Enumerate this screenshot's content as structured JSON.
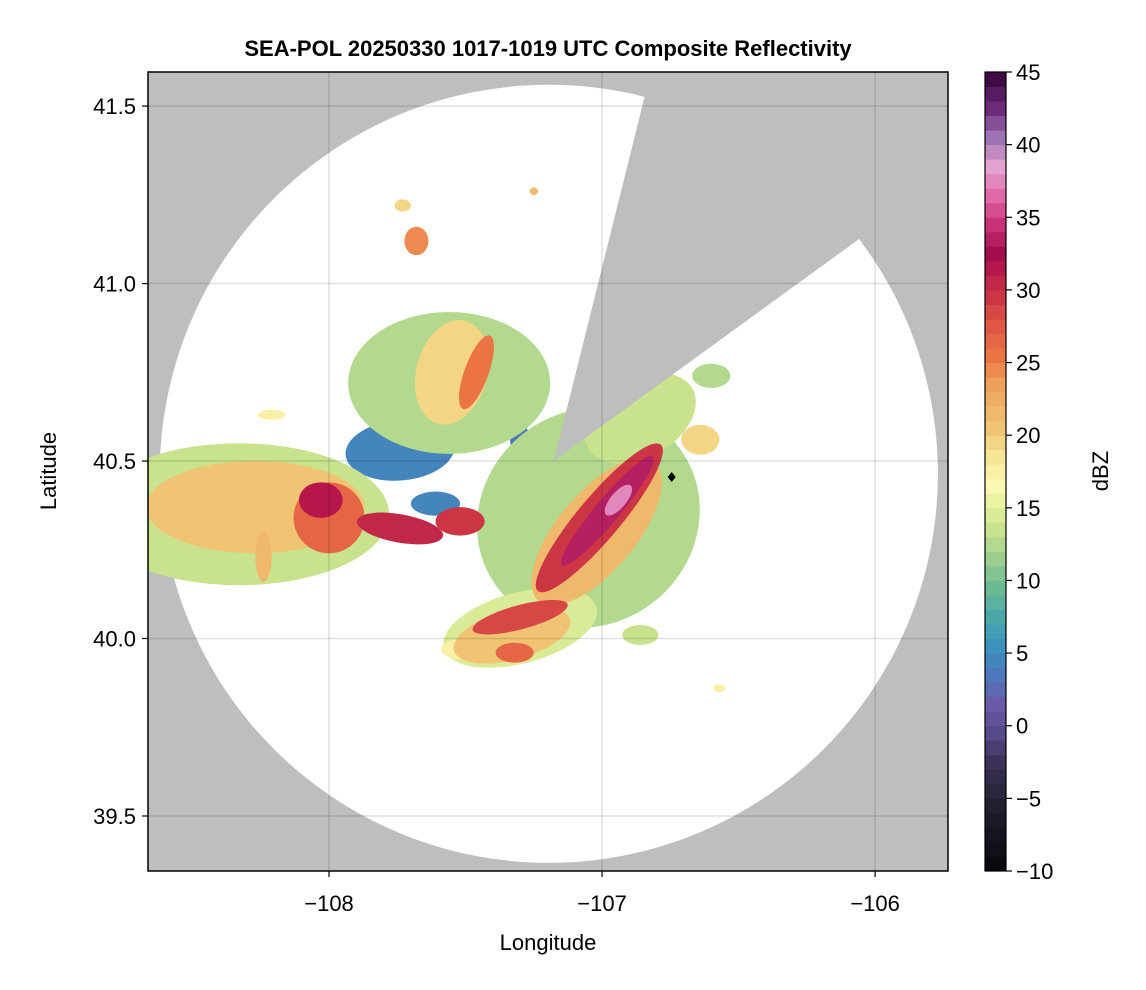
{
  "chart_data": {
    "type": "heatmap",
    "title": "SEA-POL 20250330 1017-1019 UTC Composite Reflectivity",
    "xlabel": "Longitude",
    "ylabel": "Latitude",
    "xlim": [
      -108.663,
      -105.733
    ],
    "ylim": [
      39.345,
      41.596
    ],
    "xticks": [
      -108,
      -107,
      -106
    ],
    "xtick_labels": [
      "−108",
      "−107",
      "−106"
    ],
    "yticks": [
      39.5,
      40.0,
      40.5,
      41.0,
      41.5
    ],
    "ytick_labels": [
      "39.5",
      "40.0",
      "40.5",
      "41.0",
      "41.5"
    ],
    "grid": true,
    "background_color": "#bebebe",
    "radar": {
      "center_lon": -107.195,
      "center_lat": 40.464,
      "range_lon_deg": 1.425,
      "range_lat_deg": 1.096,
      "blocked_sector_azimuth_deg": [
        14,
        54
      ]
    },
    "marker": {
      "lon": -106.745,
      "lat": 40.455,
      "shape": "diamond",
      "color": "#000000"
    },
    "colorbar": {
      "label": "dBZ",
      "range": [
        -10,
        45
      ],
      "step": 1,
      "ticks": [
        -10,
        -5,
        0,
        5,
        10,
        15,
        20,
        25,
        30,
        35,
        40,
        45
      ],
      "tick_labels": [
        "−10",
        "−5",
        "0",
        "5",
        "10",
        "15",
        "20",
        "25",
        "30",
        "35",
        "40",
        "45"
      ],
      "color_stops": [
        [
          -10,
          "#050308"
        ],
        [
          -5,
          "#22202e"
        ],
        [
          -2,
          "#3c3158"
        ],
        [
          0,
          "#574a8a"
        ],
        [
          2,
          "#6a5aa8"
        ],
        [
          4,
          "#4d78bd"
        ],
        [
          6,
          "#3b92bd"
        ],
        [
          8,
          "#4ba8a8"
        ],
        [
          10,
          "#6abb94"
        ],
        [
          12,
          "#9ccf8e"
        ],
        [
          14,
          "#c8e28e"
        ],
        [
          16,
          "#eaf3a0"
        ],
        [
          17,
          "#fbf8b3"
        ],
        [
          19,
          "#f6e596"
        ],
        [
          21,
          "#f1c474"
        ],
        [
          24,
          "#eea05a"
        ],
        [
          26,
          "#ea7444"
        ],
        [
          28,
          "#e05845"
        ],
        [
          30,
          "#cc3644"
        ],
        [
          32,
          "#b5174a"
        ],
        [
          33,
          "#a00e4c"
        ],
        [
          35,
          "#c93278"
        ],
        [
          37,
          "#e06aa8"
        ],
        [
          39,
          "#e3a3d0"
        ],
        [
          41,
          "#9e73b4"
        ],
        [
          43,
          "#6d2b7a"
        ],
        [
          45,
          "#3f0a45"
        ]
      ]
    },
    "echo_cells": [
      {
        "lon": -108.33,
        "lat": 40.35,
        "rlon": 0.55,
        "rlat": 0.2,
        "angle": 0,
        "dbz": 14
      },
      {
        "lon": -107.56,
        "lat": 40.72,
        "rlon": 0.37,
        "rlat": 0.2,
        "angle": 0,
        "dbz": 13
      },
      {
        "lon": -107.05,
        "lat": 40.34,
        "rlon": 0.42,
        "rlat": 0.3,
        "angle": -40,
        "dbz": 13
      },
      {
        "lon": -107.3,
        "lat": 40.03,
        "rlon": 0.29,
        "rlat": 0.1,
        "angle": -15,
        "dbz": 15
      },
      {
        "lon": -106.86,
        "lat": 40.62,
        "rlon": 0.22,
        "rlat": 0.11,
        "angle": -30,
        "dbz": 14
      },
      {
        "lon": -108.27,
        "lat": 40.37,
        "rlon": 0.4,
        "rlat": 0.13,
        "angle": 0,
        "dbz": 21
      },
      {
        "lon": -107.55,
        "lat": 40.75,
        "rlon": 0.13,
        "rlat": 0.15,
        "angle": 15,
        "dbz": 20
      },
      {
        "lon": -107.02,
        "lat": 40.3,
        "rlon": 0.33,
        "rlat": 0.11,
        "angle": -50,
        "dbz": 22
      },
      {
        "lon": -107.33,
        "lat": 40.01,
        "rlon": 0.22,
        "rlat": 0.07,
        "angle": -15,
        "dbz": 21
      },
      {
        "lon": -107.74,
        "lat": 40.53,
        "rlon": 0.2,
        "rlat": 0.085,
        "angle": -5,
        "dbz": 5
      },
      {
        "lon": -107.61,
        "lat": 40.38,
        "rlon": 0.09,
        "rlat": 0.034,
        "angle": 0,
        "dbz": 5
      },
      {
        "lon": -107.24,
        "lat": 40.27,
        "rlon": 0.044,
        "rlat": 0.07,
        "angle": 20,
        "dbz": 5
      },
      {
        "lon": -108.0,
        "lat": 40.34,
        "rlon": 0.13,
        "rlat": 0.1,
        "angle": 0,
        "dbz": 27
      },
      {
        "lon": -108.03,
        "lat": 40.39,
        "rlon": 0.08,
        "rlat": 0.05,
        "angle": 0,
        "dbz": 32
      },
      {
        "lon": -107.74,
        "lat": 40.31,
        "rlon": 0.16,
        "rlat": 0.04,
        "angle": 10,
        "dbz": 31
      },
      {
        "lon": -107.52,
        "lat": 40.33,
        "rlon": 0.09,
        "rlat": 0.04,
        "angle": 0,
        "dbz": 30
      },
      {
        "lon": -107.46,
        "lat": 40.75,
        "rlon": 0.044,
        "rlat": 0.11,
        "angle": 20,
        "dbz": 26
      },
      {
        "lon": -107.01,
        "lat": 40.34,
        "rlon": 0.35,
        "rlat": 0.06,
        "angle": -50,
        "dbz": 30
      },
      {
        "lon": -106.98,
        "lat": 40.36,
        "rlon": 0.26,
        "rlat": 0.034,
        "angle": -50,
        "dbz": 34
      },
      {
        "lon": -106.94,
        "lat": 40.39,
        "rlon": 0.07,
        "rlat": 0.022,
        "angle": -50,
        "dbz": 38
      },
      {
        "lon": -107.3,
        "lat": 40.06,
        "rlon": 0.18,
        "rlat": 0.034,
        "angle": -15,
        "dbz": 29
      },
      {
        "lon": -107.32,
        "lat": 39.96,
        "rlon": 0.07,
        "rlat": 0.028,
        "angle": 0,
        "dbz": 27
      },
      {
        "lon": -107.19,
        "lat": 40.55,
        "rlon": 0.044,
        "rlat": 0.022,
        "angle": 0,
        "dbz": -1
      },
      {
        "lon": -107.17,
        "lat": 40.34,
        "rlon": 0.03,
        "rlat": 0.04,
        "angle": 20,
        "dbz": -1
      },
      {
        "lon": -107.35,
        "lat": 40.38,
        "rlon": 0.07,
        "rlat": 0.028,
        "angle": 0,
        "dbz": 2
      },
      {
        "lon": -107.3,
        "lat": 40.56,
        "rlon": 0.037,
        "rlat": 0.042,
        "angle": 0,
        "dbz": 4
      },
      {
        "lon": -107.68,
        "lat": 41.12,
        "rlon": 0.044,
        "rlat": 0.04,
        "angle": 0,
        "dbz": 25
      },
      {
        "lon": -107.73,
        "lat": 41.22,
        "rlon": 0.03,
        "rlat": 0.017,
        "angle": 0,
        "dbz": 20
      },
      {
        "lon": -108.21,
        "lat": 40.63,
        "rlon": 0.05,
        "rlat": 0.014,
        "angle": 0,
        "dbz": 18
      },
      {
        "lon": -108.24,
        "lat": 40.23,
        "rlon": 0.03,
        "rlat": 0.07,
        "angle": 0,
        "dbz": 22
      },
      {
        "lon": -106.6,
        "lat": 40.74,
        "rlon": 0.07,
        "rlat": 0.034,
        "angle": 0,
        "dbz": 13
      },
      {
        "lon": -106.64,
        "lat": 40.56,
        "rlon": 0.07,
        "rlat": 0.042,
        "angle": 0,
        "dbz": 20
      },
      {
        "lon": -106.86,
        "lat": 40.01,
        "rlon": 0.066,
        "rlat": 0.028,
        "angle": 0,
        "dbz": 14
      },
      {
        "lon": -106.57,
        "lat": 39.86,
        "rlon": 0.022,
        "rlat": 0.011,
        "angle": 0,
        "dbz": 18
      },
      {
        "lon": -107.52,
        "lat": 39.97,
        "rlon": 0.07,
        "rlat": 0.028,
        "angle": 0,
        "dbz": 18
      },
      {
        "lon": -107.25,
        "lat": 41.26,
        "rlon": 0.015,
        "rlat": 0.011,
        "angle": 0,
        "dbz": 22
      }
    ]
  }
}
